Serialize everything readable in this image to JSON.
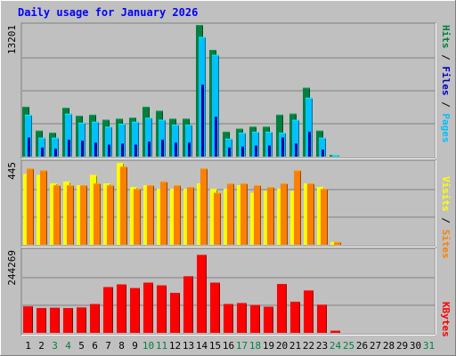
{
  "title": "Daily usage for January 2026",
  "colors": {
    "background": "#c0c0c0",
    "plot": "#c0c0c0",
    "title": "#0000ff",
    "hits": "#008040",
    "files": "#00c0ff",
    "pages": "#0000c0",
    "visits": "#ffff00",
    "sites": "#ff8000",
    "kbytes": "#ff0000",
    "weekend": "#008040",
    "weekday": "#000000",
    "gridline": "#808080"
  },
  "chart_data": [
    {
      "type": "bar",
      "panel": "top",
      "ymax_label": "13201",
      "ylim": [
        0,
        13201
      ],
      "right_label": {
        "pages": "Pages",
        "files": "Files",
        "hits": "Hits",
        "sep": "/"
      },
      "categories": [
        "1",
        "2",
        "3",
        "4",
        "5",
        "6",
        "7",
        "8",
        "9",
        "10",
        "11",
        "12",
        "13",
        "14",
        "15",
        "16",
        "17",
        "18",
        "19",
        "20",
        "21",
        "22",
        "23",
        "24",
        "25",
        "26",
        "27",
        "28",
        "29",
        "30",
        "31"
      ],
      "weekend_days": [
        "3",
        "4",
        "10",
        "11",
        "17",
        "18",
        "24",
        "25",
        "31"
      ],
      "series": [
        {
          "name": "Hits",
          "values": [
            5000,
            2600,
            2400,
            4900,
            4100,
            4200,
            3700,
            3800,
            3900,
            5000,
            4600,
            3800,
            3800,
            13200,
            10700,
            2500,
            2800,
            3000,
            3000,
            4200,
            4300,
            6900,
            2600,
            180,
            0,
            0,
            0,
            0,
            0,
            0,
            0
          ]
        },
        {
          "name": "Files",
          "values": [
            4200,
            1900,
            1900,
            4300,
            3400,
            3500,
            3000,
            3300,
            3500,
            3900,
            3700,
            3200,
            3200,
            12000,
            10200,
            1800,
            2400,
            2500,
            2500,
            2400,
            3700,
            5900,
            1900,
            180,
            0,
            0,
            0,
            0,
            0,
            0,
            0
          ]
        },
        {
          "name": "Pages",
          "values": [
            1900,
            900,
            800,
            1700,
            1600,
            1400,
            1200,
            1300,
            1200,
            1500,
            1700,
            1400,
            1400,
            7200,
            4000,
            900,
            1000,
            1100,
            1100,
            1900,
            1300,
            2500,
            700,
            0,
            0,
            0,
            0,
            0,
            0,
            0,
            0
          ]
        }
      ]
    },
    {
      "type": "bar",
      "panel": "middle",
      "ymax_label": "445",
      "ylim": [
        0,
        445
      ],
      "right_label": {
        "sites": "Sites",
        "visits": "Visits",
        "sep": "/"
      },
      "categories": [
        "1",
        "2",
        "3",
        "4",
        "5",
        "6",
        "7",
        "8",
        "9",
        "10",
        "11",
        "12",
        "13",
        "14",
        "15",
        "16",
        "17",
        "18",
        "19",
        "20",
        "21",
        "22",
        "23",
        "24",
        "25",
        "26",
        "27",
        "28",
        "29",
        "30",
        "31"
      ],
      "series": [
        {
          "name": "Visits",
          "values": [
            380,
            375,
            330,
            340,
            320,
            375,
            330,
            440,
            310,
            320,
            300,
            300,
            300,
            330,
            300,
            300,
            320,
            280,
            290,
            300,
            290,
            330,
            310,
            15,
            0,
            0,
            0,
            0,
            0,
            0,
            0
          ]
        },
        {
          "name": "Sites",
          "values": [
            410,
            400,
            320,
            320,
            320,
            330,
            320,
            420,
            300,
            320,
            340,
            320,
            310,
            410,
            280,
            330,
            330,
            320,
            310,
            330,
            400,
            330,
            300,
            15,
            0,
            0,
            0,
            0,
            0,
            0,
            0
          ]
        }
      ]
    },
    {
      "type": "bar",
      "panel": "bottom",
      "ymax_label": "244269",
      "ylim": [
        0,
        244269
      ],
      "right_label": {
        "kbytes": "KBytes"
      },
      "categories": [
        "1",
        "2",
        "3",
        "4",
        "5",
        "6",
        "7",
        "8",
        "9",
        "10",
        "11",
        "12",
        "13",
        "14",
        "15",
        "16",
        "17",
        "18",
        "19",
        "20",
        "21",
        "22",
        "23",
        "24",
        "25",
        "26",
        "27",
        "28",
        "29",
        "30",
        "31"
      ],
      "series": [
        {
          "name": "KBytes",
          "values": [
            78000,
            73000,
            74000,
            73000,
            75000,
            85000,
            135000,
            143000,
            132000,
            148000,
            140000,
            118000,
            167000,
            230000,
            148000,
            85000,
            88000,
            82000,
            77000,
            144000,
            92000,
            125000,
            83000,
            6000,
            0,
            0,
            0,
            0,
            0,
            0,
            0
          ]
        }
      ]
    }
  ]
}
